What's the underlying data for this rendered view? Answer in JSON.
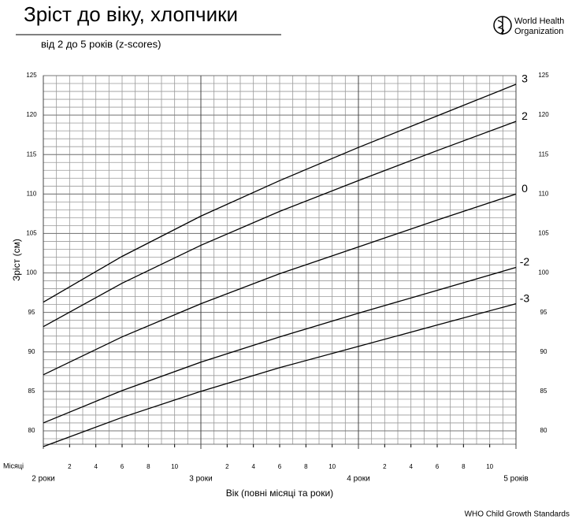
{
  "chart_data": {
    "type": "line",
    "title": "Зріст до віку, хлопчики",
    "subtitle": "від 2 до 5 років (z-scores)",
    "logo_text": [
      "World Health",
      "Organization"
    ],
    "footer": "WHO Child Growth Standards",
    "ylabel": "Зріст (см)",
    "xlabel": "Вік (повні місяці та  роки)",
    "month_axis_label": "Місяці",
    "x": [
      24,
      30,
      36,
      42,
      48,
      54,
      60
    ],
    "series": [
      {
        "name": "3",
        "color": "#000000",
        "values": [
          96.3,
          102.1,
          107.2,
          111.7,
          115.9,
          119.9,
          123.9
        ]
      },
      {
        "name": "2",
        "color": "#000000",
        "values": [
          93.2,
          98.7,
          103.5,
          107.8,
          111.7,
          115.5,
          119.2
        ]
      },
      {
        "name": "0",
        "color": "#000000",
        "values": [
          87.1,
          91.9,
          96.1,
          99.9,
          103.3,
          106.7,
          110.0
        ]
      },
      {
        "name": "-2",
        "color": "#000000",
        "values": [
          81.0,
          85.1,
          88.7,
          91.9,
          94.9,
          97.8,
          100.7
        ]
      },
      {
        "name": "-3",
        "color": "#000000",
        "values": [
          78.0,
          81.7,
          85.0,
          88.0,
          90.7,
          93.4,
          96.1
        ]
      }
    ],
    "xlim": [
      24,
      60
    ],
    "ylim": [
      78.3,
      125
    ],
    "yticks": [
      80,
      85,
      90,
      95,
      100,
      105,
      110,
      115,
      120,
      125
    ],
    "xticks": [
      {
        "value": 26,
        "label": "2"
      },
      {
        "value": 28,
        "label": "4"
      },
      {
        "value": 30,
        "label": "6"
      },
      {
        "value": 32,
        "label": "8"
      },
      {
        "value": 34,
        "label": "10"
      },
      {
        "value": 38,
        "label": "2"
      },
      {
        "value": 40,
        "label": "4"
      },
      {
        "value": 42,
        "label": "6"
      },
      {
        "value": 44,
        "label": "8"
      },
      {
        "value": 46,
        "label": "10"
      },
      {
        "value": 50,
        "label": "2"
      },
      {
        "value": 52,
        "label": "4"
      },
      {
        "value": 54,
        "label": "6"
      },
      {
        "value": 56,
        "label": "8"
      },
      {
        "value": 58,
        "label": "10"
      }
    ],
    "year_ticks": [
      {
        "value": 24,
        "label": "2 роки"
      },
      {
        "value": 36,
        "label": "3 роки"
      },
      {
        "value": 48,
        "label": "4 роки"
      },
      {
        "value": 60,
        "label": "5 років"
      }
    ],
    "grid": true,
    "minor_grid": {
      "x": 1,
      "y": 1
    }
  }
}
